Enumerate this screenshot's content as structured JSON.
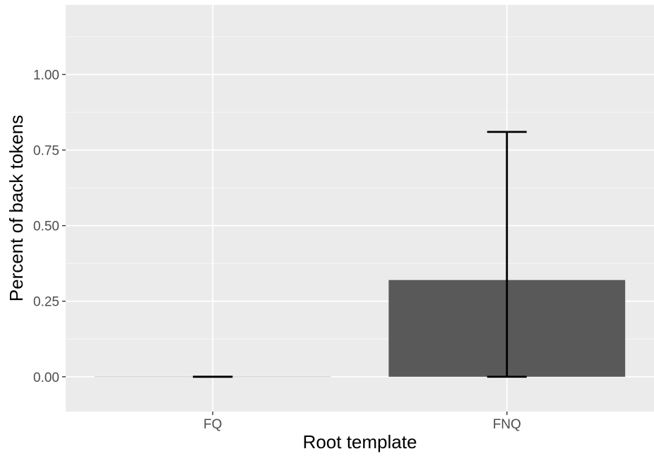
{
  "chart_data": {
    "type": "bar",
    "title": "",
    "xlabel": "Root template",
    "ylabel": "Percent of back tokens",
    "categories": [
      "FQ",
      "FNQ"
    ],
    "values": [
      0.0,
      0.32
    ],
    "error_bars": [
      {
        "lower": 0.0,
        "upper": 0.0
      },
      {
        "lower": 0.0,
        "upper": 0.81
      }
    ],
    "ylim": [
      -0.115,
      1.23
    ],
    "yticks": [
      0.0,
      0.25,
      0.5,
      0.75,
      1.0
    ],
    "ytick_labels": [
      "0.00",
      "0.25",
      "0.50",
      "0.75",
      "1.00"
    ],
    "grid": true,
    "legend": "none",
    "colors": {
      "panel_background": "#ebebeb",
      "grid_major": "#ffffff",
      "bar_fill": "#595959",
      "error_bar": "#000000"
    }
  }
}
